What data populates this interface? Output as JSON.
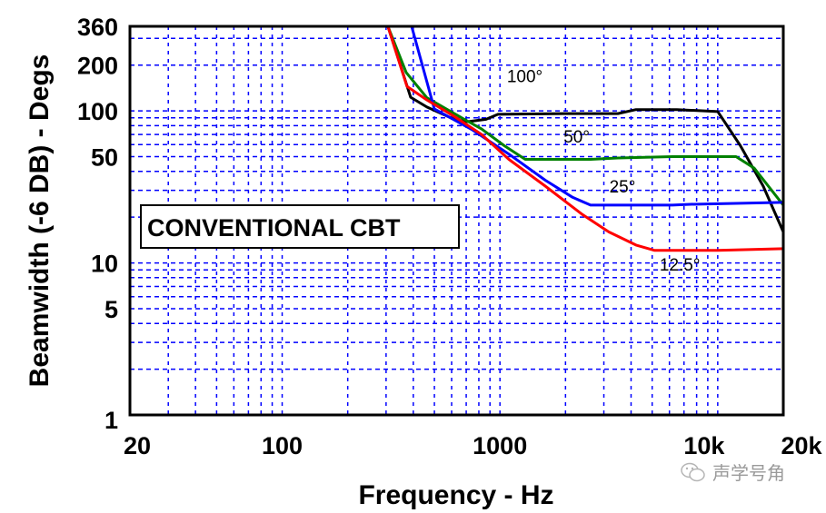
{
  "chart_data": {
    "type": "line",
    "title": "",
    "annotation": "CONVENTIONAL CBT",
    "xlabel": "Frequency - Hz",
    "ylabel": "Beamwidth (-6 DB) - Degs",
    "xscale": "log",
    "yscale": "log",
    "xlim": [
      20,
      20000
    ],
    "ylim": [
      1,
      360
    ],
    "grid": true,
    "grid_style": "dashed-blue",
    "x_ticks": [
      {
        "value": 20,
        "label": "20"
      },
      {
        "value": 100,
        "label": "100"
      },
      {
        "value": 1000,
        "label": "1000"
      },
      {
        "value": 10000,
        "label": "10k"
      },
      {
        "value": 20000,
        "label": "20k"
      }
    ],
    "y_ticks": [
      {
        "value": 360,
        "label": "360"
      },
      {
        "value": 200,
        "label": "200"
      },
      {
        "value": 100,
        "label": "100"
      },
      {
        "value": 50,
        "label": "50"
      },
      {
        "value": 10,
        "label": "10"
      },
      {
        "value": 5,
        "label": "5"
      },
      {
        "value": 1,
        "label": "1"
      }
    ],
    "x_gridlines": [
      30,
      40,
      50,
      60,
      70,
      80,
      90,
      100,
      200,
      300,
      400,
      500,
      600,
      700,
      800,
      900,
      1000,
      2000,
      3000,
      4000,
      5000,
      6000,
      7000,
      8000,
      9000,
      10000
    ],
    "y_gridlines": [
      2,
      3,
      4,
      5,
      6,
      7,
      8,
      9,
      10,
      20,
      30,
      40,
      50,
      60,
      70,
      80,
      90,
      100,
      200,
      300
    ],
    "series": [
      {
        "name": "100°",
        "color": "#000000",
        "points": [
          [
            20,
            360
          ],
          [
            306,
            360
          ],
          [
            389,
            123
          ],
          [
            462,
            106
          ],
          [
            617,
            88
          ],
          [
            713,
            85
          ],
          [
            863,
            88
          ],
          [
            979,
            95
          ],
          [
            1955,
            96
          ],
          [
            3480,
            96
          ],
          [
            4215,
            102
          ],
          [
            6490,
            102
          ],
          [
            10000,
            99
          ],
          [
            12710,
            59
          ],
          [
            16170,
            32
          ],
          [
            20000,
            16
          ]
        ]
      },
      {
        "name": "50°",
        "color": "#008000",
        "points": [
          [
            20,
            360
          ],
          [
            306,
            360
          ],
          [
            371,
            179
          ],
          [
            462,
            122
          ],
          [
            617,
            96
          ],
          [
            824,
            76
          ],
          [
            1047,
            59
          ],
          [
            1306,
            48
          ],
          [
            2607,
            48
          ],
          [
            3480,
            49
          ],
          [
            6190,
            50
          ],
          [
            12130,
            50
          ],
          [
            14700,
            42
          ],
          [
            20000,
            24
          ]
        ]
      },
      {
        "name": "25°",
        "color": "#0000ff",
        "points": [
          [
            20,
            360
          ],
          [
            393,
            360
          ],
          [
            500,
            103
          ],
          [
            748,
            75
          ],
          [
            1099,
            52
          ],
          [
            1615,
            35
          ],
          [
            2155,
            27
          ],
          [
            2607,
            24
          ],
          [
            6190,
            24
          ],
          [
            7500,
            24.3
          ],
          [
            20000,
            25
          ]
        ]
      },
      {
        "name": "12.5°",
        "color": "#ff0000",
        "points": [
          [
            20,
            360
          ],
          [
            306,
            360
          ],
          [
            374,
            145
          ],
          [
            462,
            118
          ],
          [
            617,
            92
          ],
          [
            824,
            70
          ],
          [
            1099,
            48
          ],
          [
            1615,
            32
          ],
          [
            2370,
            21
          ],
          [
            3160,
            16
          ],
          [
            4215,
            13.1
          ],
          [
            5110,
            12.1
          ],
          [
            10000,
            12.1
          ],
          [
            20000,
            12.4
          ]
        ]
      }
    ],
    "curve_labels": [
      {
        "text": "100°",
        "series": "100°",
        "anchor_x": 1300,
        "anchor_y": 155
      },
      {
        "text": "50°",
        "series": "50°",
        "anchor_x": 2250,
        "anchor_y": 62
      },
      {
        "text": "25°",
        "series": "25°",
        "anchor_x": 3650,
        "anchor_y": 29
      },
      {
        "text": "12.5°",
        "series": "12.5°",
        "anchor_x": 6700,
        "anchor_y": 8.9
      }
    ]
  },
  "watermark": {
    "icon": "wechat-icon",
    "text": "声学号角"
  }
}
